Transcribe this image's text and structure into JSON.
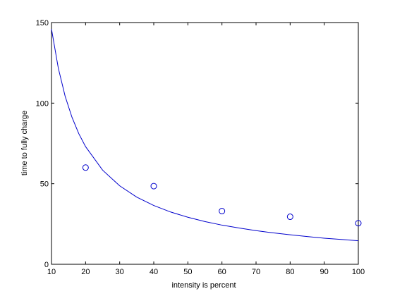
{
  "chart_data": {
    "type": "scatter",
    "xlabel": "intensity is percent",
    "ylabel": "time to fully charge",
    "xlim": [
      10,
      100
    ],
    "ylim": [
      0,
      150
    ],
    "xticks": [
      10,
      20,
      30,
      40,
      50,
      60,
      70,
      80,
      90,
      100
    ],
    "yticks": [
      0,
      50,
      100,
      150
    ],
    "grid": false,
    "series": [
      {
        "kind": "markers",
        "marker": "circle-open",
        "color": "#0000cc",
        "x": [
          20,
          40,
          60,
          80,
          100
        ],
        "y": [
          60,
          48.5,
          33,
          29.5,
          25.5
        ]
      },
      {
        "kind": "line",
        "color": "#0000cc",
        "x": [
          10,
          12,
          14,
          16,
          18,
          20,
          25,
          30,
          35,
          40,
          45,
          50,
          55,
          60,
          65,
          70,
          75,
          80,
          85,
          90,
          95,
          100
        ],
        "y": [
          146,
          121.7,
          104.3,
          91.3,
          81.1,
          73,
          58.4,
          48.7,
          41.7,
          36.5,
          32.4,
          29.2,
          26.5,
          24.3,
          22.5,
          20.9,
          19.5,
          18.3,
          17.2,
          16.2,
          15.4,
          14.6
        ]
      }
    ]
  }
}
